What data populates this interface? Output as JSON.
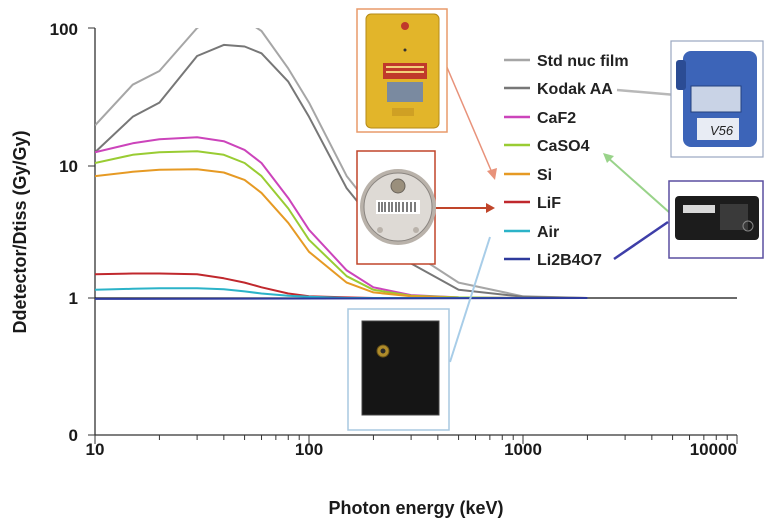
{
  "chart_data": {
    "type": "line",
    "title": "",
    "xlabel": "Photon energy (keV)",
    "ylabel": "Ddetector/Dtiss (Gy/Gy)",
    "x_scale": "log",
    "y_scale": "log",
    "xlim": [
      10,
      10000
    ],
    "ylim_major": [
      1,
      100
    ],
    "x_ticks": [
      "10",
      "100",
      "1000",
      "10000"
    ],
    "y_ticks": [
      "0",
      "1",
      "10",
      "100"
    ],
    "grid": false,
    "legend_position": "right",
    "reference_line_y": 1,
    "series": [
      {
        "name": "Std nuc film",
        "color": "#a6a6a6",
        "x": [
          10,
          15,
          20,
          30,
          40,
          50,
          60,
          80,
          100,
          150,
          200,
          300,
          500,
          1000,
          2000
        ],
        "y": [
          19,
          38,
          48,
          100,
          130,
          115,
          95,
          50,
          28,
          8,
          4.5,
          2.2,
          1.3,
          1.03,
          1.0
        ]
      },
      {
        "name": "Kodak AA",
        "color": "#777777",
        "x": [
          10,
          15,
          20,
          30,
          40,
          50,
          60,
          80,
          100,
          150,
          200,
          300,
          500,
          1000,
          2000
        ],
        "y": [
          12,
          22,
          28,
          62,
          75,
          73,
          65,
          40,
          22,
          6.5,
          3.7,
          1.8,
          1.15,
          1.02,
          1.0
        ]
      },
      {
        "name": "CaF2",
        "color": "#cc44bb",
        "x": [
          10,
          15,
          20,
          30,
          40,
          50,
          60,
          80,
          100,
          150,
          200,
          300,
          500,
          1000,
          2000
        ],
        "y": [
          12,
          14,
          15,
          15.5,
          14.5,
          12.5,
          10,
          5.5,
          3.2,
          1.6,
          1.2,
          1.05,
          1.01,
          1.0,
          1.0
        ]
      },
      {
        "name": "CaSO4",
        "color": "#99cc33",
        "x": [
          10,
          15,
          20,
          30,
          40,
          50,
          60,
          80,
          100,
          150,
          200,
          300,
          500,
          1000,
          2000
        ],
        "y": [
          10,
          11.5,
          12,
          12.2,
          11.5,
          10,
          8,
          4.6,
          2.7,
          1.45,
          1.15,
          1.04,
          1.01,
          1.0,
          1.0
        ]
      },
      {
        "name": "Si",
        "color": "#e69a24",
        "x": [
          10,
          15,
          20,
          30,
          40,
          50,
          60,
          80,
          100,
          150,
          200,
          300,
          500,
          1000,
          2000
        ],
        "y": [
          8,
          8.6,
          8.9,
          9,
          8.5,
          7.5,
          6,
          3.6,
          2.2,
          1.3,
          1.1,
          1.03,
          1.0,
          1.0,
          1.0
        ]
      },
      {
        "name": "LiF",
        "color": "#c0282d",
        "x": [
          10,
          15,
          20,
          30,
          40,
          50,
          60,
          80,
          100,
          150,
          200,
          300,
          500,
          1000,
          2000
        ],
        "y": [
          1.5,
          1.52,
          1.52,
          1.5,
          1.4,
          1.3,
          1.2,
          1.08,
          1.03,
          1.01,
          1.0,
          1.0,
          1.0,
          1.0,
          1.0
        ]
      },
      {
        "name": "Air",
        "color": "#2bb3c8",
        "x": [
          10,
          15,
          20,
          30,
          40,
          50,
          60,
          80,
          100,
          150,
          200,
          300,
          500,
          1000,
          2000
        ],
        "y": [
          1.15,
          1.17,
          1.18,
          1.18,
          1.16,
          1.12,
          1.08,
          1.04,
          1.02,
          1.0,
          1.0,
          1.0,
          1.0,
          1.0,
          1.0
        ]
      },
      {
        "name": "Li2B4O7",
        "color": "#2e3a9c",
        "x": [
          10,
          2000
        ],
        "y": [
          0.985,
          1.0
        ]
      }
    ],
    "inset_images": [
      {
        "name": "yellow dosimeter badge",
        "frame": "#e89a6a"
      },
      {
        "name": "round dosimeter with barcode",
        "frame": "#c0452a"
      },
      {
        "name": "blue badge holder",
        "frame": "#9aa7c0",
        "marking": "V56"
      },
      {
        "name": "black electronic dosimeter",
        "frame": "#5a4fa0"
      },
      {
        "name": "black square detector",
        "frame": "#a8c8e0"
      }
    ]
  }
}
